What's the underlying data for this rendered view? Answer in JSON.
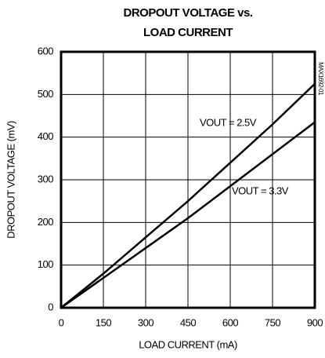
{
  "chart_data": {
    "type": "line",
    "title": "DROPOUT VOLTAGE vs. LOAD CURRENT",
    "xlabel": "LOAD CURRENT (mA)",
    "ylabel": "DROPOUT VOLTAGE (mV)",
    "figure_id": "MAX1692-01",
    "x": [
      0,
      150,
      300,
      450,
      600,
      750,
      900
    ],
    "series": [
      {
        "name": "VOUT = 2.5V",
        "color": "#000000",
        "values": [
          0,
          80,
          165,
          250,
          340,
          430,
          525
        ]
      },
      {
        "name": "VOUT = 3.3V",
        "color": "#000000",
        "values": [
          0,
          70,
          140,
          210,
          285,
          360,
          435
        ]
      }
    ],
    "xlim": [
      0,
      900
    ],
    "xticks": [
      0,
      150,
      300,
      450,
      600,
      750,
      900
    ],
    "ylim": [
      0,
      600
    ],
    "yticks": [
      0,
      100,
      200,
      300,
      400,
      500,
      600
    ],
    "grid": true
  }
}
